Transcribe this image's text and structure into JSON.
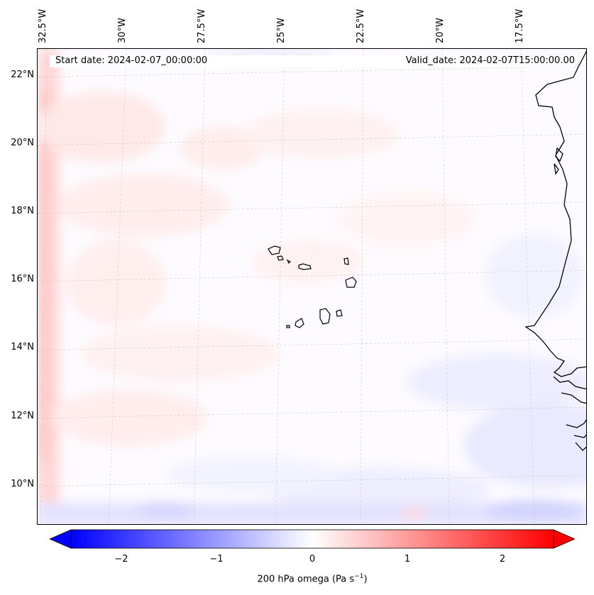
{
  "map": {
    "info": {
      "start_date": "Start date: 2024-02-07_00:00:00",
      "valid_date": "Valid_date: 2024-02-07T15:00:00.00"
    },
    "longitude_labels": [
      "32.5°W",
      "30°W",
      "27.5°W",
      "25°W",
      "22.5°W",
      "20°W",
      "17.5°W"
    ],
    "latitude_labels": [
      "22°N",
      "20°N",
      "18°N",
      "16°N",
      "14°N",
      "12°N",
      "10°N"
    ],
    "features": {
      "coastline": "West African coastline",
      "islands": "Cape Verde islands"
    }
  },
  "colorbar": {
    "variable": "200 hPa omega (Pa s",
    "unit_exponent": "−1",
    "variable_close": ")",
    "ticks": [
      "−2",
      "−1",
      "0",
      "1",
      "2"
    ],
    "tick_values": [
      -2,
      -1,
      0,
      1,
      2
    ],
    "range": [
      -2.5,
      2.5
    ],
    "colors": {
      "negative": "#0000ff",
      "zero": "#ffffff",
      "positive": "#ff0000"
    }
  }
}
